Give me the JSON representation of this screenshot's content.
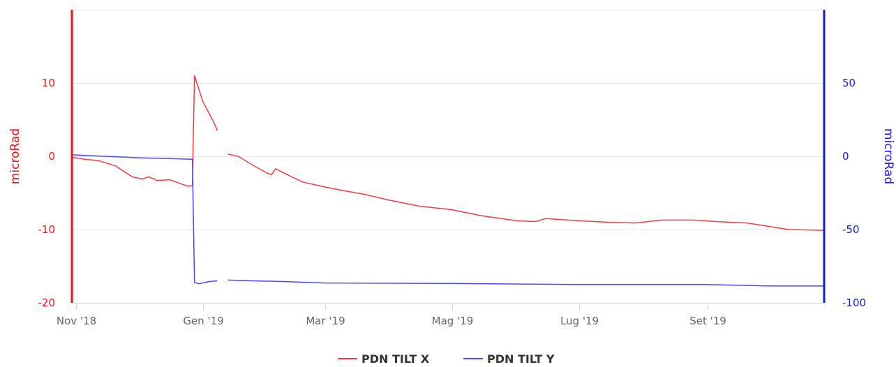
{
  "chart_data": {
    "type": "line",
    "x_axis": {
      "ticks": [
        "Nov '18",
        "Gen '19",
        "Mar '19",
        "Mag '19",
        "Lug '19",
        "Set '19"
      ],
      "tick_dates": [
        "2018-11-01",
        "2019-01-01",
        "2019-03-01",
        "2019-05-01",
        "2019-07-01",
        "2019-09-01"
      ],
      "range": [
        "2018-10-30",
        "2019-10-27"
      ]
    },
    "y_axes": [
      {
        "id": "left",
        "title": "microRad",
        "color": "#e8121a",
        "range": [
          -20,
          20
        ],
        "ticks": [
          -20,
          -10,
          0,
          10
        ]
      },
      {
        "id": "right",
        "title": "microRad",
        "color": "#1a1ae0",
        "range": [
          -100,
          100
        ],
        "ticks": [
          -100,
          -50,
          0,
          50
        ]
      }
    ],
    "grid": true,
    "legend_position": "bottom-center",
    "series": [
      {
        "name": "PDN TILT X",
        "axis": "left",
        "color": "#e8404a",
        "segments": [
          [
            [
              "2018-10-30",
              -0.1
            ],
            [
              "2018-11-05",
              -0.4
            ],
            [
              "2018-11-12",
              -0.6
            ],
            [
              "2018-11-20",
              -1.3
            ],
            [
              "2018-11-28",
              -2.8
            ],
            [
              "2018-12-03",
              -3.1
            ],
            [
              "2018-12-06",
              -2.8
            ],
            [
              "2018-12-10",
              -3.3
            ],
            [
              "2018-12-16",
              -3.2
            ],
            [
              "2018-12-22",
              -3.8
            ],
            [
              "2018-12-25",
              -4.1
            ],
            [
              "2018-12-27",
              -4.0
            ],
            [
              "2018-12-28",
              11.0
            ],
            [
              "2019-01-01",
              7.5
            ],
            [
              "2019-01-06",
              4.8
            ],
            [
              "2019-01-08",
              3.5
            ]
          ],
          [
            [
              "2019-01-13",
              0.3
            ],
            [
              "2019-01-18",
              0.0
            ],
            [
              "2019-01-25",
              -1.2
            ],
            [
              "2019-02-01",
              -2.3
            ],
            [
              "2019-02-03",
              -2.5
            ],
            [
              "2019-02-05",
              -1.7
            ],
            [
              "2019-02-12",
              -2.7
            ],
            [
              "2019-02-18",
              -3.5
            ],
            [
              "2019-03-01",
              -4.2
            ],
            [
              "2019-03-10",
              -4.7
            ],
            [
              "2019-03-20",
              -5.2
            ],
            [
              "2019-04-01",
              -6.0
            ],
            [
              "2019-04-15",
              -6.8
            ],
            [
              "2019-05-01",
              -7.3
            ],
            [
              "2019-05-15",
              -8.1
            ],
            [
              "2019-06-01",
              -8.8
            ],
            [
              "2019-06-10",
              -8.9
            ],
            [
              "2019-06-15",
              -8.5
            ],
            [
              "2019-07-01",
              -8.8
            ],
            [
              "2019-07-15",
              -9.0
            ],
            [
              "2019-07-28",
              -9.1
            ],
            [
              "2019-08-10",
              -8.7
            ],
            [
              "2019-08-25",
              -8.7
            ],
            [
              "2019-09-05",
              -8.9
            ],
            [
              "2019-09-20",
              -9.1
            ],
            [
              "2019-10-01",
              -9.6
            ],
            [
              "2019-10-10",
              -10.0
            ],
            [
              "2019-10-27",
              -10.1
            ]
          ]
        ]
      },
      {
        "name": "PDN TILT Y",
        "axis": "right",
        "color": "#4a4af0",
        "segments": [
          [
            [
              "2018-10-30",
              1.0
            ],
            [
              "2018-11-15",
              0.0
            ],
            [
              "2018-12-01",
              -1.0
            ],
            [
              "2018-12-27",
              -2.0
            ],
            [
              "2018-12-28",
              -86.0
            ],
            [
              "2018-12-30",
              -87.0
            ],
            [
              "2019-01-04",
              -85.5
            ],
            [
              "2019-01-08",
              -85.0
            ]
          ],
          [
            [
              "2019-01-13",
              -84.5
            ],
            [
              "2019-01-25",
              -85.0
            ],
            [
              "2019-02-10",
              -85.5
            ],
            [
              "2019-03-01",
              -86.5
            ],
            [
              "2019-05-01",
              -86.8
            ],
            [
              "2019-07-01",
              -87.5
            ],
            [
              "2019-09-01",
              -87.5
            ],
            [
              "2019-10-01",
              -88.5
            ],
            [
              "2019-10-27",
              -88.5
            ]
          ]
        ]
      }
    ]
  }
}
